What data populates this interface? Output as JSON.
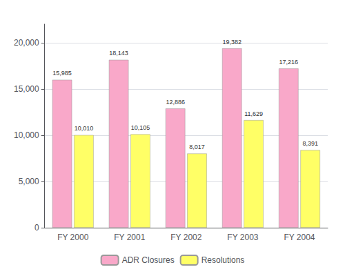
{
  "chart_data": {
    "type": "bar",
    "categories": [
      "FY 2000",
      "FY 2001",
      "FY 2002",
      "FY 2003",
      "FY 2004"
    ],
    "series": [
      {
        "name": "ADR Closures",
        "color": "#F9A8C9",
        "values": [
          15985,
          18143,
          12886,
          19382,
          17216
        ],
        "value_labels": [
          "15,985",
          "18,143",
          "12,886",
          "19,382",
          "17,216"
        ]
      },
      {
        "name": "Resolutions",
        "color": "#FFFF66",
        "values": [
          10010,
          10105,
          8017,
          11629,
          8391
        ],
        "value_labels": [
          "10,010",
          "10,105",
          "8,017",
          "11,629",
          "8,391"
        ]
      }
    ],
    "ylim": [
      0,
      22000
    ],
    "yticks": [
      0,
      {
        "value": 5000,
        "label": "5,000"
      },
      {
        "value": 10000,
        "label": "10,000"
      },
      {
        "value": 15000,
        "label": "15,000"
      },
      {
        "value": 20000,
        "label": "20,000"
      }
    ],
    "grid": true,
    "legend": "bottom",
    "data_labels": true
  }
}
